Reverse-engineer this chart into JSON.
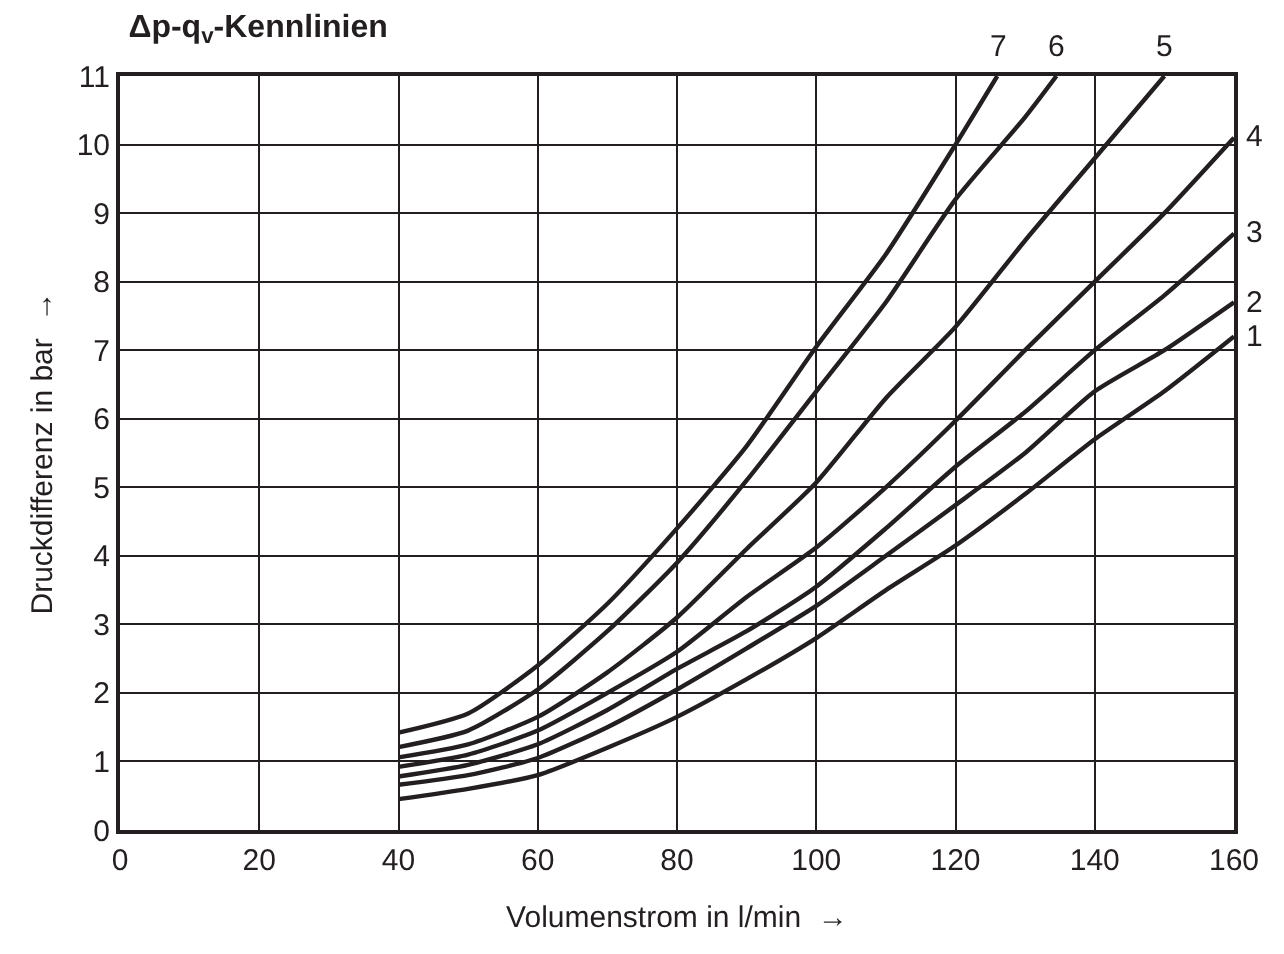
{
  "chart_data": {
    "type": "line",
    "title": "Δp-q$_{v}$-Kennlinien",
    "xlabel": "Volumenstrom in l/min  →",
    "ylabel": "Druckdifferenz in bar  →",
    "xlim": [
      0,
      160
    ],
    "ylim": [
      0,
      11
    ],
    "xticks": [
      0,
      20,
      40,
      60,
      80,
      100,
      120,
      140,
      160
    ],
    "yticks": [
      0,
      1,
      2,
      3,
      4,
      5,
      6,
      7,
      8,
      9,
      10,
      11
    ],
    "grid": true,
    "legend": false,
    "marker": "none",
    "line_style": "solid",
    "series": [
      {
        "name": "1",
        "color": "#231f20",
        "x": [
          40,
          50,
          60,
          70,
          80,
          90,
          100,
          110,
          120,
          130,
          140,
          150,
          160
        ],
        "values": [
          0.45,
          0.6,
          0.8,
          1.2,
          1.65,
          2.2,
          2.8,
          3.5,
          4.15,
          4.9,
          5.7,
          6.4,
          7.2
        ]
      },
      {
        "name": "2",
        "color": "#231f20",
        "x": [
          40,
          50,
          60,
          70,
          80,
          90,
          100,
          110,
          120,
          130,
          140,
          150,
          160
        ],
        "values": [
          0.66,
          0.8,
          1.05,
          1.5,
          2.05,
          2.65,
          3.27,
          4.0,
          4.74,
          5.5,
          6.4,
          7.0,
          7.7
        ]
      },
      {
        "name": "3",
        "color": "#231f20",
        "x": [
          40,
          50,
          60,
          70,
          80,
          90,
          100,
          110,
          120,
          130,
          140,
          150,
          160
        ],
        "values": [
          0.78,
          0.95,
          1.25,
          1.75,
          2.35,
          2.9,
          3.55,
          4.4,
          5.3,
          6.1,
          7.0,
          7.8,
          8.7
        ]
      },
      {
        "name": "4",
        "color": "#231f20",
        "x": [
          40,
          50,
          60,
          70,
          80,
          90,
          100,
          110,
          120,
          130,
          140,
          150,
          160
        ],
        "values": [
          0.92,
          1.1,
          1.45,
          2.0,
          2.6,
          3.4,
          4.12,
          5.0,
          5.97,
          7.0,
          8.0,
          9.0,
          10.1
        ]
      },
      {
        "name": "5",
        "color": "#231f20",
        "x": [
          40,
          50,
          60,
          70,
          80,
          90,
          100,
          110,
          120,
          130,
          140,
          150
        ],
        "values": [
          1.06,
          1.25,
          1.65,
          2.3,
          3.1,
          4.1,
          5.07,
          6.3,
          7.34,
          8.6,
          9.8,
          11
        ]
      },
      {
        "name": "6",
        "color": "#231f20",
        "x": [
          40,
          50,
          60,
          70,
          80,
          90,
          100,
          110,
          120,
          130,
          134.5
        ],
        "values": [
          1.21,
          1.45,
          2.05,
          2.9,
          3.9,
          5.1,
          6.4,
          7.7,
          9.2,
          10.4,
          11
        ]
      },
      {
        "name": "7",
        "color": "#231f20",
        "x": [
          40,
          50,
          60,
          70,
          80,
          90,
          100,
          110,
          120,
          126
        ],
        "values": [
          1.42,
          1.7,
          2.4,
          3.3,
          4.4,
          5.6,
          7.05,
          8.4,
          10.0,
          11
        ]
      }
    ]
  }
}
